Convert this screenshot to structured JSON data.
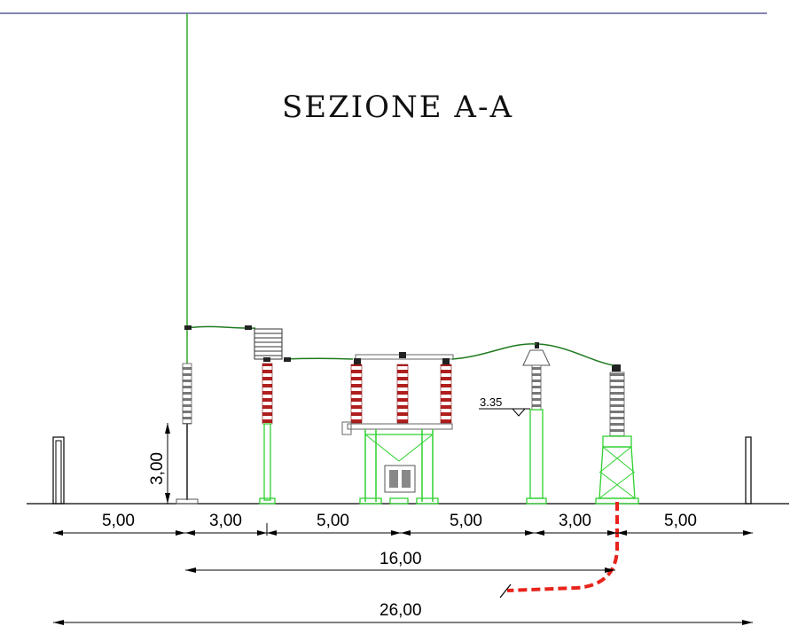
{
  "title": "SEZIONE A-A",
  "level_marker": "3.35",
  "vertical_dimension": "3,00",
  "bay_dimensions": [
    "5,00",
    "3,00",
    "5,00",
    "5,00",
    "3,00",
    "5,00"
  ],
  "sub_total_dimension": "16,00",
  "total_dimension": "26,00",
  "colors": {
    "frame_line": "#3a3a8c",
    "support_steel": "#2fd12f",
    "insulator": "#b01e1e",
    "conductor": "#1f7a1f",
    "cable": "#e8231b",
    "ground": "#000000"
  }
}
